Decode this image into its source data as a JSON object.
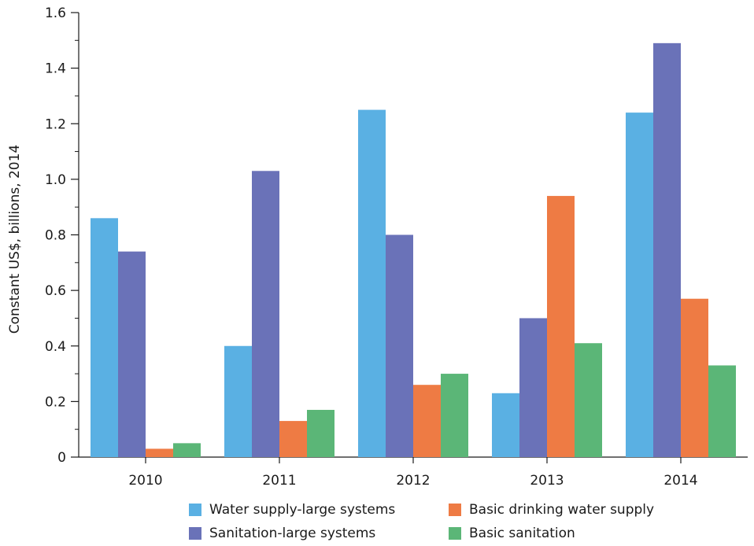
{
  "chart_data": {
    "type": "bar",
    "title": "",
    "xlabel": "",
    "ylabel": "Constant US$, billions, 2014",
    "categories": [
      "2010",
      "2011",
      "2012",
      "2013",
      "2014"
    ],
    "ylim": [
      0,
      1.6
    ],
    "yticks": [
      "0",
      "0.2",
      "0.4",
      "0.6",
      "0.8",
      "1.0",
      "1.2",
      "1.4",
      "1.6"
    ],
    "grid": false,
    "legend_position": "bottom",
    "series": [
      {
        "name": "Water supply-large systems",
        "color": "#5ab0e3",
        "values": [
          0.86,
          0.4,
          1.25,
          0.23,
          1.24
        ]
      },
      {
        "name": "Sanitation-large systems",
        "color": "#6a72b8",
        "values": [
          0.74,
          1.03,
          0.8,
          0.5,
          1.49
        ]
      },
      {
        "name": "Basic drinking water supply",
        "color": "#ee7b44",
        "values": [
          0.03,
          0.13,
          0.26,
          0.94,
          0.57
        ]
      },
      {
        "name": "Basic sanitation",
        "color": "#5bb677",
        "values": [
          0.05,
          0.17,
          0.3,
          0.41,
          0.33
        ]
      }
    ]
  },
  "legend": {
    "items": [
      {
        "label": "Water supply-large systems",
        "color": "#5ab0e3"
      },
      {
        "label": "Basic drinking water supply",
        "color": "#ee7b44"
      },
      {
        "label": "Sanitation-large systems",
        "color": "#6a72b8"
      },
      {
        "label": "Basic sanitation",
        "color": "#5bb677"
      }
    ]
  }
}
